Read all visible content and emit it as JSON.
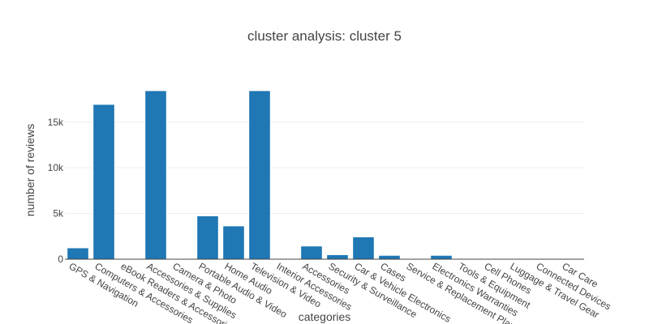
{
  "chart_data": {
    "type": "bar",
    "title": "cluster analysis: cluster 5",
    "xlabel": "categories",
    "ylabel": "number of reviews",
    "categories": [
      "GPS & Navigation",
      "Computers & Accessories",
      "eBook Readers & Accessories",
      "Accessories & Supplies",
      "Camera & Photo",
      "Portable Audio & Video",
      "Home Audio",
      "Television & Video",
      "Interior Accessories",
      "Accessories",
      "Security & Surveillance",
      "Car & Vehicle Electronics",
      "Cases",
      "Service & Replacement Plans",
      "Electronics Warranties",
      "Tools & Equipment",
      "Cell Phones",
      "Luggage & Travel Gear",
      "Connected Devices",
      "Car Care"
    ],
    "values": [
      1200,
      16900,
      0,
      18400,
      0,
      4700,
      3600,
      18400,
      0,
      1400,
      450,
      2400,
      380,
      0,
      380,
      0,
      0,
      0,
      0,
      0
    ],
    "ylim": [
      0,
      19500
    ],
    "yticks": [
      0,
      5000,
      10000,
      15000
    ],
    "ytick_labels": [
      "0",
      "5k",
      "10k",
      "15k"
    ],
    "grid": true,
    "bar_color": "#1f77b4"
  }
}
